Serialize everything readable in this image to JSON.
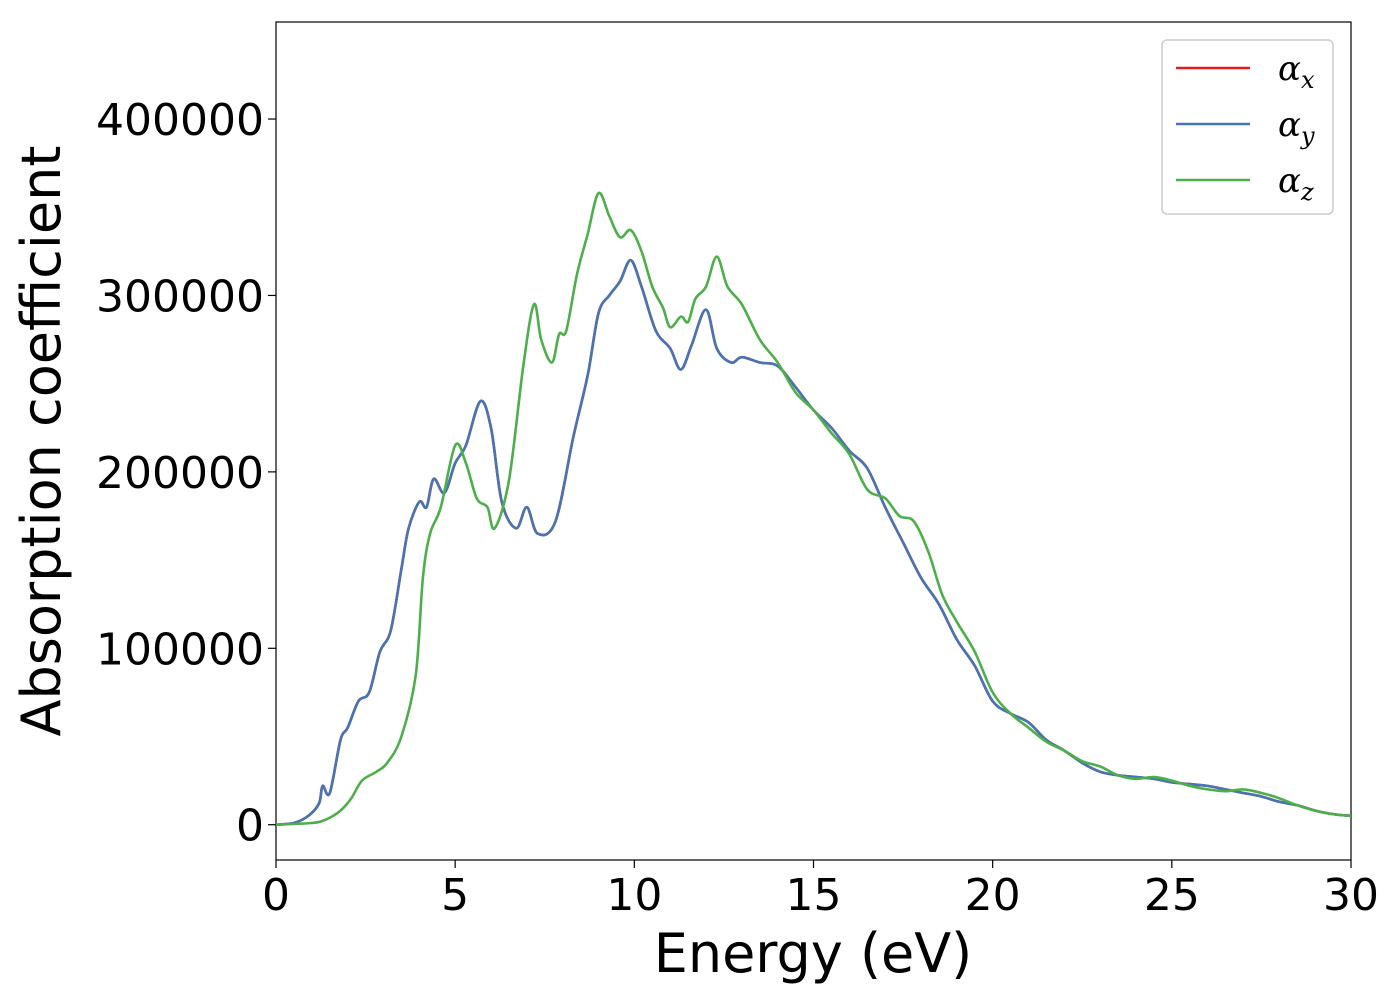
{
  "chart_data": {
    "type": "line",
    "title": "",
    "xlabel": "Energy (eV)",
    "ylabel": "Absorption coefficient",
    "xlim": [
      0,
      30
    ],
    "ylim": [
      -20000,
      455000
    ],
    "xticks": [
      0,
      5,
      10,
      15,
      20,
      25,
      30
    ],
    "xtick_labels": [
      "0",
      "5",
      "10",
      "15",
      "20",
      "25",
      "30"
    ],
    "yticks": [
      0,
      100000,
      200000,
      300000,
      400000
    ],
    "ytick_labels": [
      "0",
      "100000",
      "200000",
      "300000",
      "400000"
    ],
    "grid": false,
    "legend_position": "top-right",
    "series": [
      {
        "name": "αx",
        "symbol": "α",
        "subscript": "x",
        "color": "#e41a1c",
        "x": [
          0,
          0.5,
          0.9,
          1.2,
          1.3,
          1.5,
          1.8,
          2.0,
          2.3,
          2.6,
          2.9,
          3.2,
          3.5,
          3.7,
          4.0,
          4.2,
          4.4,
          4.7,
          5.0,
          5.3,
          5.7,
          6.0,
          6.3,
          6.7,
          7.0,
          7.3,
          7.8,
          8.3,
          8.7,
          9.0,
          9.3,
          9.6,
          9.9,
          10.2,
          10.6,
          11.0,
          11.3,
          11.6,
          12.0,
          12.3,
          12.7,
          13.0,
          13.5,
          14.0,
          14.5,
          15.0,
          15.5,
          16.0,
          16.5,
          17.0,
          17.5,
          18.0,
          18.5,
          19.0,
          19.5,
          20.0,
          20.5,
          21.0,
          21.5,
          22.0,
          22.5,
          23.0,
          23.5,
          24.0,
          24.5,
          25.0,
          25.5,
          26.0,
          26.5,
          27.0,
          27.5,
          28.0,
          28.5,
          29.0,
          29.5,
          30.0
        ],
        "y": [
          0,
          1000,
          5000,
          12000,
          22000,
          18000,
          48000,
          55000,
          70000,
          75000,
          98000,
          110000,
          145000,
          168000,
          183000,
          180000,
          196000,
          188000,
          205000,
          215000,
          240000,
          225000,
          183000,
          168000,
          180000,
          165000,
          172000,
          220000,
          255000,
          290000,
          300000,
          308000,
          320000,
          305000,
          280000,
          270000,
          258000,
          272000,
          292000,
          270000,
          262000,
          265000,
          262000,
          260000,
          248000,
          235000,
          225000,
          212000,
          202000,
          180000,
          160000,
          140000,
          125000,
          105000,
          90000,
          70000,
          63000,
          58000,
          48000,
          42000,
          35000,
          30000,
          28000,
          27000,
          26000,
          24000,
          23000,
          22000,
          20000,
          18000,
          16000,
          13000,
          11000,
          8000,
          6000,
          5000
        ]
      },
      {
        "name": "αy",
        "symbol": "α",
        "subscript": "y",
        "color": "#4575b4",
        "x": [
          0,
          0.5,
          0.9,
          1.2,
          1.3,
          1.5,
          1.8,
          2.0,
          2.3,
          2.6,
          2.9,
          3.2,
          3.5,
          3.7,
          4.0,
          4.2,
          4.4,
          4.7,
          5.0,
          5.3,
          5.7,
          6.0,
          6.3,
          6.7,
          7.0,
          7.3,
          7.8,
          8.3,
          8.7,
          9.0,
          9.3,
          9.6,
          9.9,
          10.2,
          10.6,
          11.0,
          11.3,
          11.6,
          12.0,
          12.3,
          12.7,
          13.0,
          13.5,
          14.0,
          14.5,
          15.0,
          15.5,
          16.0,
          16.5,
          17.0,
          17.5,
          18.0,
          18.5,
          19.0,
          19.5,
          20.0,
          20.5,
          21.0,
          21.5,
          22.0,
          22.5,
          23.0,
          23.5,
          24.0,
          24.5,
          25.0,
          25.5,
          26.0,
          26.5,
          27.0,
          27.5,
          28.0,
          28.5,
          29.0,
          29.5,
          30.0
        ],
        "y": [
          0,
          1000,
          5000,
          12000,
          22000,
          18000,
          48000,
          55000,
          70000,
          75000,
          98000,
          110000,
          145000,
          168000,
          183000,
          180000,
          196000,
          188000,
          205000,
          215000,
          240000,
          225000,
          183000,
          168000,
          180000,
          165000,
          172000,
          220000,
          255000,
          290000,
          300000,
          308000,
          320000,
          305000,
          280000,
          270000,
          258000,
          272000,
          292000,
          270000,
          262000,
          265000,
          262000,
          260000,
          248000,
          235000,
          225000,
          212000,
          202000,
          180000,
          160000,
          140000,
          125000,
          105000,
          90000,
          70000,
          63000,
          58000,
          48000,
          42000,
          35000,
          30000,
          28000,
          27000,
          26000,
          24000,
          23000,
          22000,
          20000,
          18000,
          16000,
          13000,
          11000,
          8000,
          6000,
          5000
        ]
      },
      {
        "name": "αz",
        "symbol": "α",
        "subscript": "z",
        "color": "#4daf4a",
        "x": [
          0,
          1.0,
          1.4,
          1.8,
          2.1,
          2.4,
          2.8,
          3.1,
          3.5,
          3.9,
          4.1,
          4.3,
          4.6,
          5.0,
          5.3,
          5.6,
          5.9,
          6.1,
          6.5,
          6.9,
          7.2,
          7.4,
          7.7,
          7.9,
          8.1,
          8.4,
          8.7,
          9.0,
          9.3,
          9.6,
          9.9,
          10.2,
          10.5,
          10.8,
          11.0,
          11.3,
          11.5,
          11.7,
          12.0,
          12.3,
          12.6,
          13.0,
          13.5,
          14.0,
          14.5,
          15.0,
          15.5,
          16.0,
          16.5,
          17.0,
          17.4,
          17.8,
          18.2,
          18.6,
          19.0,
          19.5,
          20.0,
          20.5,
          21.0,
          21.5,
          22.0,
          22.5,
          23.0,
          23.5,
          24.0,
          24.5,
          25.0,
          25.5,
          26.0,
          26.5,
          27.0,
          27.5,
          28.0,
          28.5,
          29.0,
          29.5,
          30.0
        ],
        "y": [
          0,
          1000,
          3000,
          8000,
          15000,
          25000,
          30000,
          35000,
          50000,
          85000,
          140000,
          165000,
          180000,
          215000,
          205000,
          185000,
          180000,
          168000,
          195000,
          260000,
          295000,
          275000,
          262000,
          278000,
          280000,
          312000,
          335000,
          358000,
          345000,
          333000,
          337000,
          325000,
          305000,
          293000,
          282000,
          288000,
          285000,
          298000,
          305000,
          322000,
          305000,
          295000,
          275000,
          262000,
          245000,
          235000,
          222000,
          210000,
          190000,
          185000,
          175000,
          172000,
          155000,
          130000,
          115000,
          98000,
          75000,
          63000,
          55000,
          47000,
          42000,
          36000,
          33000,
          28000,
          26000,
          27000,
          25000,
          22000,
          20000,
          19000,
          20000,
          18000,
          15000,
          11000,
          8000,
          6000,
          5000
        ]
      }
    ]
  }
}
